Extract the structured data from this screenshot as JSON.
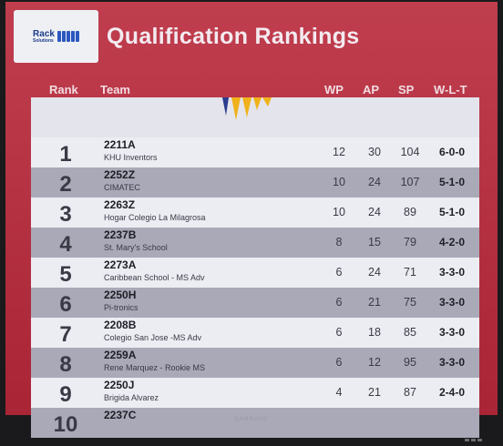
{
  "header": {
    "title": "Qualification Rankings",
    "logo_text_1": "Rack",
    "logo_text_2": "Solutions"
  },
  "columns": {
    "rank": "Rank",
    "team": "Team",
    "wp": "WP",
    "ap": "AP",
    "sp": "SP",
    "wlt": "W-L-T"
  },
  "rows": [
    {
      "rank": "1",
      "team": "2211A",
      "name": "KHU Inventors",
      "wp": "12",
      "ap": "30",
      "sp": "104",
      "wlt": "6-0-0"
    },
    {
      "rank": "2",
      "team": "2252Z",
      "name": "CIMATEC",
      "wp": "10",
      "ap": "24",
      "sp": "107",
      "wlt": "5-1-0"
    },
    {
      "rank": "3",
      "team": "2263Z",
      "name": "Hogar Colegio La Milagrosa",
      "wp": "10",
      "ap": "24",
      "sp": "89",
      "wlt": "5-1-0"
    },
    {
      "rank": "4",
      "team": "2237B",
      "name": "St. Mary's School",
      "wp": "8",
      "ap": "15",
      "sp": "79",
      "wlt": "4-2-0"
    },
    {
      "rank": "5",
      "team": "2273A",
      "name": "Caribbean School - MS Adv",
      "wp": "6",
      "ap": "24",
      "sp": "71",
      "wlt": "3-3-0"
    },
    {
      "rank": "6",
      "team": "2250H",
      "name": "Pi-tronics",
      "wp": "6",
      "ap": "21",
      "sp": "75",
      "wlt": "3-3-0"
    },
    {
      "rank": "7",
      "team": "2208B",
      "name": "Colegio San Jose -MS Adv",
      "wp": "6",
      "ap": "18",
      "sp": "85",
      "wlt": "3-3-0"
    },
    {
      "rank": "8",
      "team": "2259A",
      "name": "Rene Marquez - Rookie MS",
      "wp": "6",
      "ap": "12",
      "sp": "95",
      "wlt": "3-3-0"
    },
    {
      "rank": "9",
      "team": "2250J",
      "name": "Brigida Alvarez",
      "wp": "4",
      "ap": "21",
      "sp": "87",
      "wlt": "2-4-0"
    },
    {
      "rank": "10",
      "team": "2237C",
      "name": "",
      "wp": "",
      "ap": "",
      "sp": "",
      "wlt": ""
    }
  ],
  "bezel": {
    "brand": "SAMSUNG"
  },
  "colors": {
    "background": "#b8283a",
    "row_dark": "#a9a9b8",
    "row_light": "#ecedf3"
  }
}
